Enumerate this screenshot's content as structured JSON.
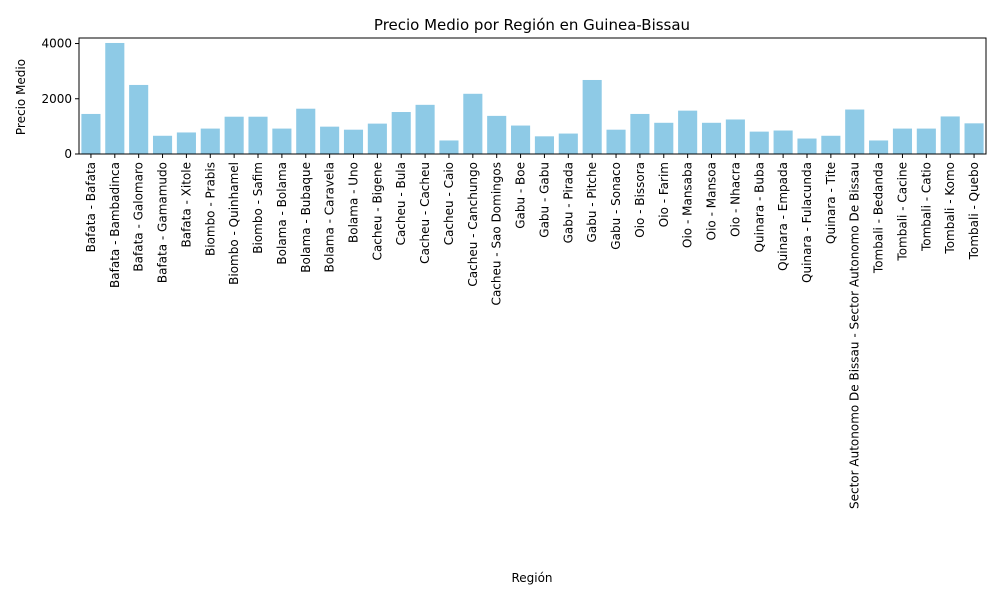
{
  "chart_data": {
    "type": "bar",
    "title": "Precio Medio por Región en Guinea-Bissau",
    "xlabel": "Región",
    "ylabel": "Precio Medio",
    "ylim": [
      0,
      4200
    ],
    "yticks": [
      0,
      2000,
      4000
    ],
    "ytick_labels": [
      "0",
      "2000",
      "4000"
    ],
    "grid": false,
    "bar_color": "#8ecae6",
    "categories": [
      "Bafata - Bafata",
      "Bafata - Bambadinca",
      "Bafata - Galomaro",
      "Bafata - Gamamudo",
      "Bafata - Xitole",
      "Biombo - Prabis",
      "Biombo - Quinhamel",
      "Biombo - Safim",
      "Bolama - Bolama",
      "Bolama - Bubaque",
      "Bolama - Caravela",
      "Bolama - Uno",
      "Cacheu - Bigene",
      "Cacheu - Bula",
      "Cacheu - Cacheu",
      "Cacheu - Caio",
      "Cacheu - Canchungo",
      "Cacheu - Sao Domingos",
      "Gabu - Boe",
      "Gabu - Gabu",
      "Gabu - Pirada",
      "Gabu - Pitche",
      "Gabu - Sonaco",
      "Oio - Bissora",
      "Oio - Farim",
      "Oio - Mansaba",
      "Oio - Mansoa",
      "Oio - Nhacra",
      "Quinara - Buba",
      "Quinara - Empada",
      "Quinara - Fulacunda",
      "Quinara - Tite",
      "Sector Autonomo De Bissau - Sector Autonomo De Bissau",
      "Tombali - Bedanda",
      "Tombali - Cacine",
      "Tombali - Catio",
      "Tombali - Komo",
      "Tombali - Quebo"
    ],
    "values": [
      1450,
      4020,
      2500,
      660,
      780,
      920,
      1350,
      1350,
      920,
      1640,
      990,
      880,
      1100,
      1520,
      1780,
      490,
      2180,
      1380,
      1030,
      640,
      740,
      2680,
      880,
      1450,
      1130,
      1570,
      1130,
      1250,
      810,
      850,
      560,
      660,
      1610,
      490,
      920,
      920,
      1360,
      1110
    ]
  }
}
